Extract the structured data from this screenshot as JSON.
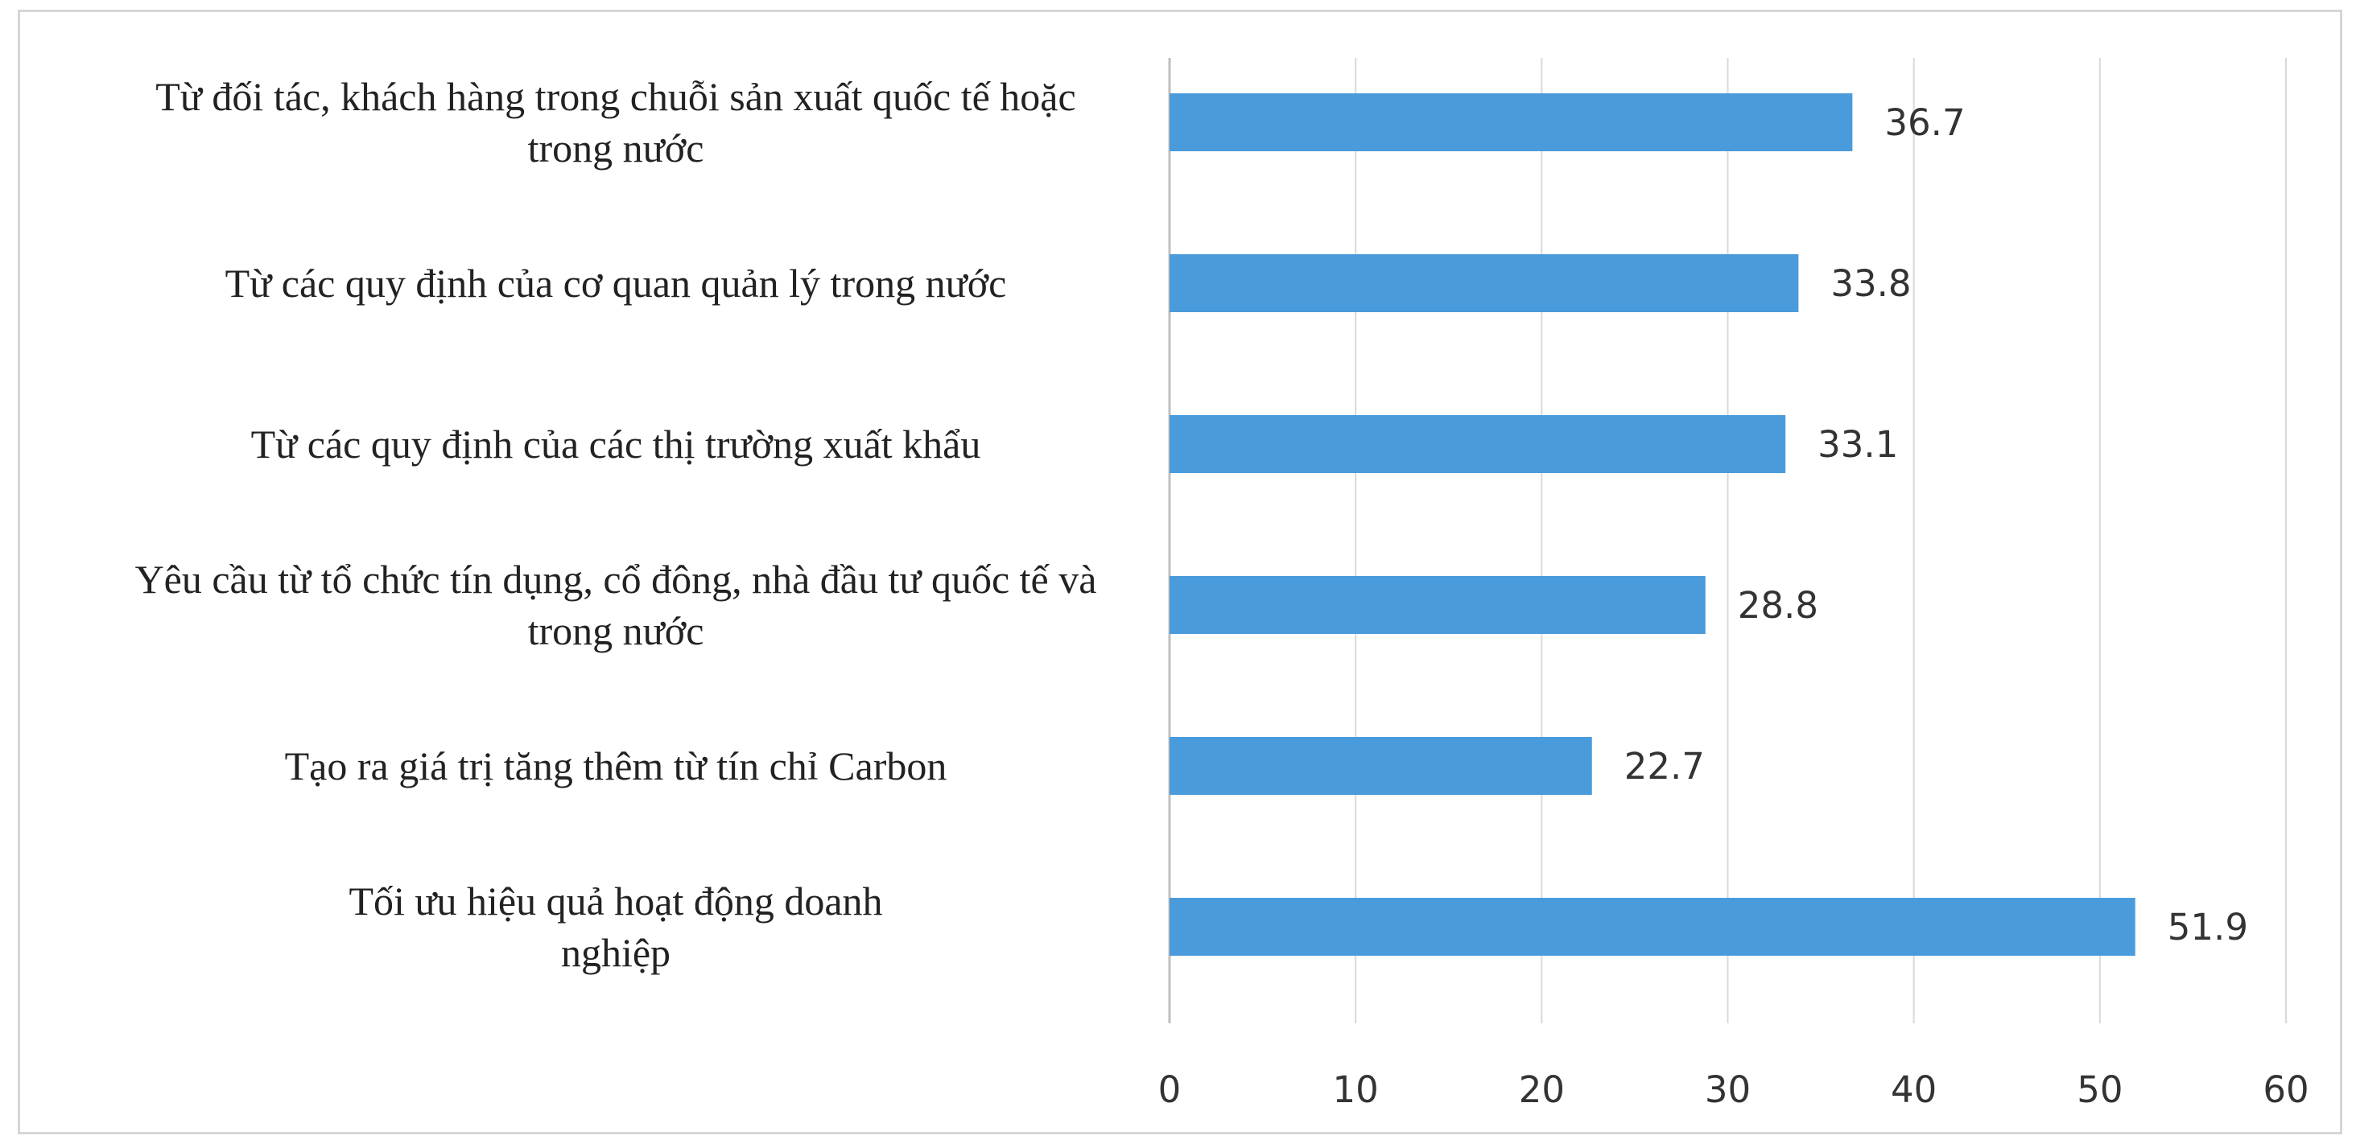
{
  "chart_data": {
    "type": "bar",
    "orientation": "horizontal",
    "title": "",
    "xlabel": "",
    "ylabel": "",
    "categories": [
      [
        "Từ đối tác, khách hàng trong chuỗi sản xuất quốc tế hoặc",
        "trong nước"
      ],
      [
        "Từ các quy định của cơ quan quản lý trong nước"
      ],
      [
        "Từ các quy định của các thị trường xuất khẩu"
      ],
      [
        "Yêu cầu từ tổ chức tín dụng, cổ đông, nhà đầu tư quốc tế và",
        "trong nước"
      ],
      [
        "Tạo ra giá trị tăng thêm từ tín chỉ Carbon"
      ],
      [
        "Tối ưu hiệu quả hoạt động doanh",
        "nghiệp"
      ]
    ],
    "values": [
      36.7,
      33.8,
      33.1,
      28.8,
      22.7,
      51.9
    ],
    "value_labels": [
      "36.7",
      "33.8",
      "33.1",
      "28.8",
      "22.7",
      "51.9"
    ],
    "xlim": [
      0,
      60
    ],
    "ticks": [
      "0",
      "10",
      "20",
      "30",
      "40",
      "50",
      "60"
    ],
    "grid": "vertical",
    "legend": "none",
    "colors": {
      "bar": "#4a9bdb",
      "grid": "#d9d9d9",
      "axis": "#bfbfbf"
    }
  }
}
